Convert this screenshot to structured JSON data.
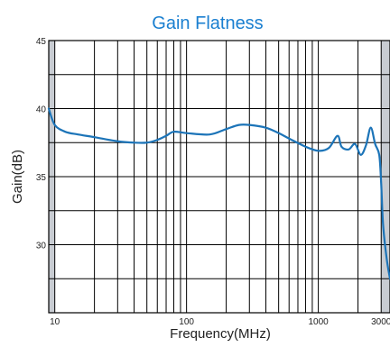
{
  "chart_data": {
    "type": "line",
    "title": "Gain Flatness",
    "xlabel": "Frequency(MHz)",
    "ylabel": "Gain(dB)",
    "x_scale": "log",
    "xlim": [
      9,
      3500
    ],
    "ylim": [
      25,
      45
    ],
    "x_ticks": [
      10,
      100,
      1000,
      3000
    ],
    "x_tick_labels": [
      "10",
      "100",
      "1000",
      "3000"
    ],
    "y_ticks": [
      30,
      35,
      40,
      45
    ],
    "y_tick_labels": [
      "30",
      "35",
      "40",
      "45"
    ],
    "grid": true,
    "shaded_regions": [
      [
        9,
        10
      ],
      [
        3000,
        3500
      ]
    ],
    "series": [
      {
        "color": "#1c74b8",
        "x": [
          9,
          10,
          12,
          15,
          20,
          30,
          40,
          50,
          60,
          70,
          80,
          100,
          150,
          200,
          250,
          300,
          400,
          500,
          600,
          800,
          1000,
          1200,
          1400,
          1500,
          1700,
          1900,
          2100,
          2300,
          2500,
          2700,
          2900,
          3000,
          3100,
          3300,
          3500
        ],
        "y": [
          40.0,
          38.8,
          38.3,
          38.1,
          37.9,
          37.6,
          37.5,
          37.5,
          37.7,
          38.0,
          38.3,
          38.2,
          38.1,
          38.5,
          38.8,
          38.8,
          38.6,
          38.2,
          37.8,
          37.2,
          36.9,
          37.1,
          38.0,
          37.2,
          37.0,
          37.4,
          36.6,
          37.3,
          38.6,
          37.4,
          36.6,
          34.5,
          31.5,
          29.0,
          27.5
        ]
      }
    ]
  }
}
